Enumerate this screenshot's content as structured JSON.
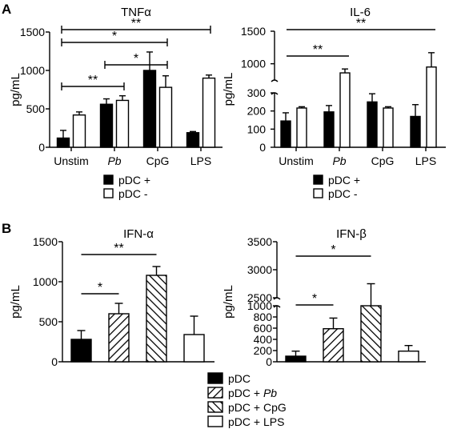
{
  "panel_labels": {
    "a": "A",
    "b": "B"
  },
  "colors": {
    "pdc_plus": "#000000",
    "pdc_minus": "#ffffff",
    "stroke": "#000000"
  },
  "chart_data": [
    {
      "id": "tnf",
      "panel": "A",
      "type": "bar",
      "title": "TNFα",
      "ylabel": "pg/mL",
      "xlabel": "",
      "ylim": [
        0,
        1500
      ],
      "yticks": [
        0,
        500,
        1000,
        1500
      ],
      "categories": [
        "Unstim",
        "Pb",
        "CpG",
        "LPS"
      ],
      "series": [
        {
          "name": "pDC +",
          "fill": "solid",
          "values": [
            120,
            560,
            1000,
            190
          ],
          "errors": [
            100,
            70,
            240,
            15
          ]
        },
        {
          "name": "pDC -",
          "fill": "open",
          "values": [
            420,
            610,
            780,
            900
          ],
          "errors": [
            40,
            60,
            150,
            40
          ]
        }
      ],
      "significance": [
        {
          "label": "**",
          "from": 0,
          "to": 3
        },
        {
          "label": "*",
          "from": 0,
          "to": 2
        },
        {
          "label": "*",
          "from": 1,
          "to": 2
        },
        {
          "label": "**",
          "from": 0,
          "to": 1
        }
      ],
      "legend": [
        "pDC +",
        "pDC -"
      ]
    },
    {
      "id": "il6",
      "panel": "A",
      "type": "bar",
      "title": "IL-6",
      "ylabel": "pg/mL",
      "xlabel": "",
      "scale": "broken",
      "ylim": [
        0,
        1500
      ],
      "axis_break": [
        300,
        750
      ],
      "yticks": [
        0,
        100,
        200,
        300,
        1000,
        1500
      ],
      "categories": [
        "Unstim",
        "Pb",
        "CpG",
        "LPS"
      ],
      "series": [
        {
          "name": "pDC +",
          "fill": "solid",
          "values": [
            145,
            195,
            250,
            170
          ],
          "errors": [
            45,
            35,
            45,
            65
          ]
        },
        {
          "name": "pDC -",
          "fill": "open",
          "values": [
            320,
            860,
            320,
            950
          ],
          "errors": [
            20,
            60,
            20,
            220
          ]
        }
      ],
      "significance": [
        {
          "label": "**",
          "from": 0,
          "to": 3
        },
        {
          "label": "**",
          "from": 0,
          "to": 1
        }
      ],
      "legend": [
        "pDC +",
        "pDC -"
      ]
    },
    {
      "id": "ifna",
      "panel": "B",
      "type": "bar",
      "title": "IFN-α",
      "ylabel": "pg/mL",
      "xlabel": "",
      "ylim": [
        0,
        1500
      ],
      "yticks": [
        0,
        500,
        1000,
        1500
      ],
      "categories": [
        "pDC",
        "pDC + Pb",
        "pDC + CpG",
        "pDC + LPS"
      ],
      "fills": [
        "solid",
        "hatch-back",
        "hatch-fwd",
        "open"
      ],
      "values": [
        280,
        600,
        1080,
        340
      ],
      "errors": [
        110,
        130,
        110,
        230
      ],
      "significance": [
        {
          "label": "**",
          "from": 0,
          "to": 2
        },
        {
          "label": "*",
          "from": 0,
          "to": 1
        }
      ]
    },
    {
      "id": "ifnb",
      "panel": "B",
      "type": "bar",
      "title": "IFN-β",
      "ylabel": "pg/mL",
      "xlabel": "",
      "scale": "broken",
      "ylim": [
        0,
        3500
      ],
      "axis_break": [
        1000,
        2500
      ],
      "yticks": [
        0,
        200,
        400,
        600,
        800,
        1000,
        2500,
        3000,
        3500
      ],
      "categories": [
        "pDC",
        "pDC + Pb",
        "pDC + CpG",
        "pDC + LPS"
      ],
      "fills": [
        "solid",
        "hatch-back",
        "hatch-fwd",
        "open"
      ],
      "values": [
        100,
        590,
        1000,
        190
      ],
      "errors": [
        90,
        190,
        1750,
        100
      ],
      "significance": [
        {
          "label": "*",
          "from": 0,
          "to": 2
        },
        {
          "label": "*",
          "from": 0,
          "to": 1
        }
      ]
    }
  ],
  "legend_b": [
    {
      "prefix": "pDC",
      "italic": "",
      "fill": "solid"
    },
    {
      "prefix": "pDC + ",
      "italic": "Pb",
      "fill": "hatch-back"
    },
    {
      "prefix": "pDC + CpG",
      "italic": "",
      "fill": "hatch-fwd"
    },
    {
      "prefix": "pDC + LPS",
      "italic": "",
      "fill": "open"
    }
  ]
}
